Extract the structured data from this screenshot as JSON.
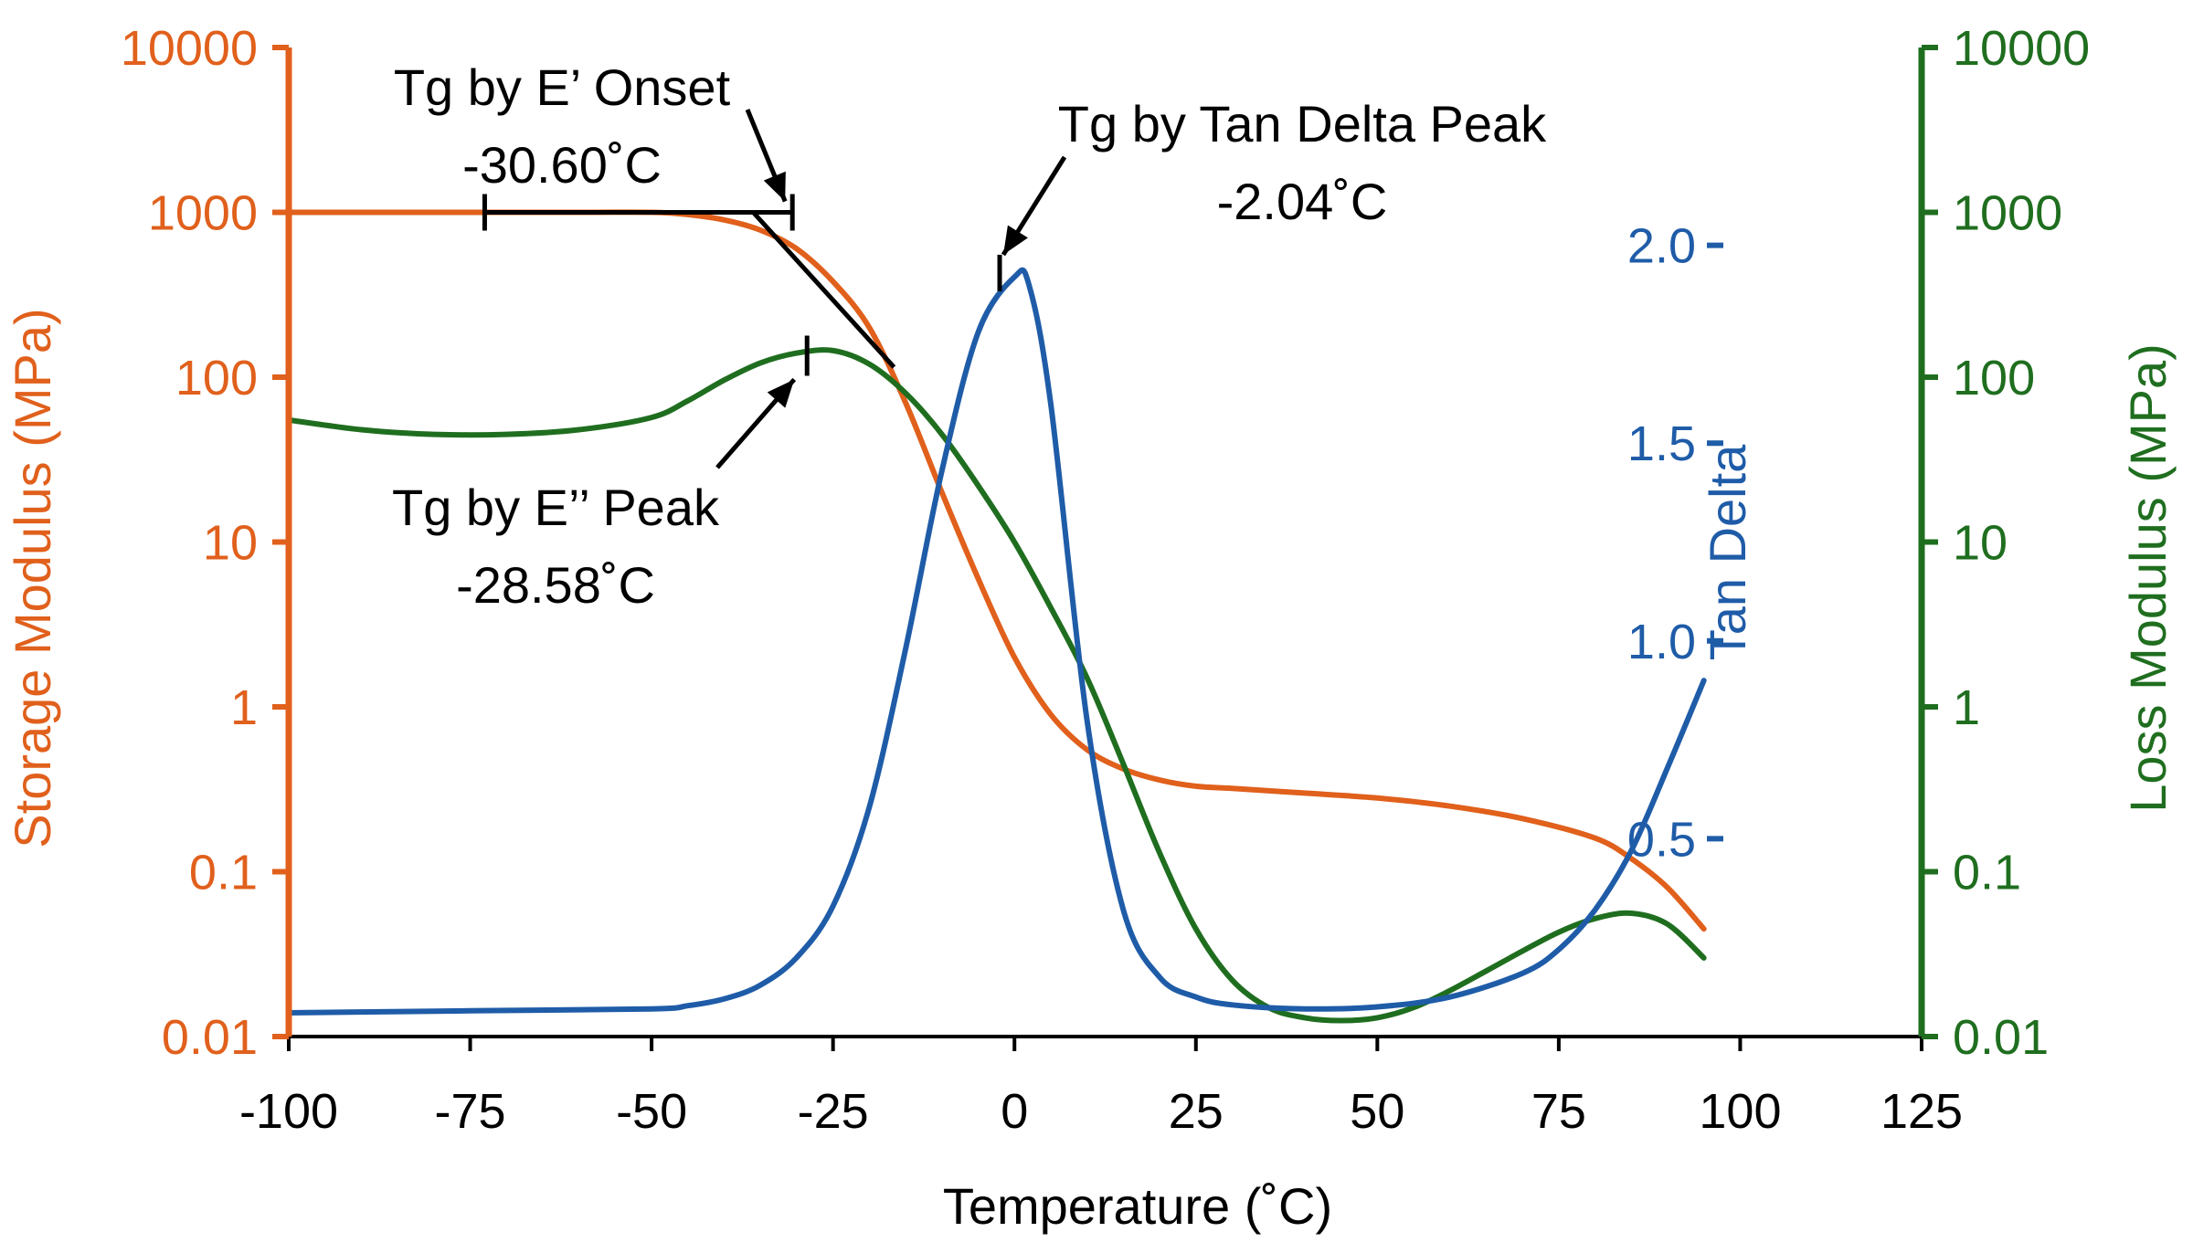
{
  "colors": {
    "storage": "#E0601C",
    "loss": "#1F6E1F",
    "tan": "#1F5CA8",
    "annotation": "#000000"
  },
  "chart_data": {
    "type": "line",
    "xlabel": "Temperature (˚C)",
    "xlim": [
      -100,
      125
    ],
    "x_ticks": [
      "-100",
      "-75",
      "-50",
      "-25",
      "0",
      "25",
      "50",
      "75",
      "100",
      "125"
    ],
    "y_left": {
      "label": "Storage Modulus (MPa)",
      "scale": "log",
      "lim": [
        0.01,
        10000
      ],
      "ticks": [
        "10000",
        "1000",
        "100",
        "10",
        "1",
        "0.1",
        "0.01"
      ]
    },
    "y_right": {
      "label": "Loss Modulus (MPa)",
      "scale": "log",
      "lim": [
        0.01,
        10000
      ],
      "ticks": [
        "10000",
        "1000",
        "100",
        "10",
        "1",
        "0.1",
        "0.01"
      ]
    },
    "y_tan": {
      "label": "Tan Delta",
      "lim": [
        0.0,
        2.5
      ],
      "ticks": [
        "2.0",
        "1.5",
        "1.0",
        "0.5"
      ]
    },
    "series": [
      {
        "name": "Storage Modulus",
        "axis": "left",
        "x": [
          -100,
          -80,
          -60,
          -50,
          -45,
          -40,
          -35,
          -30,
          -25,
          -20,
          -15,
          -10,
          -5,
          0,
          5,
          10,
          15,
          20,
          25,
          30,
          40,
          50,
          60,
          70,
          80,
          85,
          90,
          95
        ],
        "y": [
          1000,
          1000,
          1000,
          1000,
          970,
          900,
          780,
          600,
          380,
          200,
          70,
          20,
          6,
          2,
          0.9,
          0.55,
          0.42,
          0.36,
          0.33,
          0.32,
          0.3,
          0.28,
          0.25,
          0.21,
          0.16,
          0.12,
          0.08,
          0.045
        ]
      },
      {
        "name": "Loss Modulus",
        "axis": "right",
        "x": [
          -100,
          -90,
          -80,
          -70,
          -60,
          -50,
          -45,
          -40,
          -35,
          -30,
          -25,
          -20,
          -15,
          -10,
          -5,
          0,
          5,
          10,
          15,
          20,
          25,
          30,
          35,
          40,
          45,
          50,
          55,
          60,
          65,
          70,
          75,
          80,
          85,
          90,
          95
        ],
        "y": [
          55,
          48,
          45,
          45,
          48,
          57,
          72,
          96,
          122,
          140,
          145,
          120,
          80,
          45,
          22,
          10,
          4,
          1.5,
          0.45,
          0.13,
          0.045,
          0.022,
          0.015,
          0.013,
          0.0125,
          0.013,
          0.015,
          0.019,
          0.025,
          0.033,
          0.043,
          0.052,
          0.056,
          0.048,
          0.03
        ]
      },
      {
        "name": "Tan Delta",
        "axis": "tan",
        "x": [
          -100,
          -75,
          -50,
          -45,
          -40,
          -35,
          -30,
          -25,
          -20,
          -15,
          -10,
          -5,
          0,
          2,
          5,
          10,
          15,
          20,
          25,
          30,
          40,
          50,
          60,
          70,
          75,
          80,
          85,
          90,
          95
        ],
        "y": [
          0.06,
          0.065,
          0.07,
          0.078,
          0.095,
          0.13,
          0.2,
          0.33,
          0.58,
          0.98,
          1.43,
          1.78,
          1.92,
          1.9,
          1.6,
          0.8,
          0.32,
          0.15,
          0.1,
          0.08,
          0.07,
          0.075,
          0.1,
          0.16,
          0.22,
          0.32,
          0.47,
          0.68,
          0.9
        ]
      }
    ],
    "annotations": {
      "onset": {
        "line1": "Tg by E’ Onset",
        "line2": "-30.60˚C",
        "value": -30.6,
        "baseline_from": -73,
        "baseline_modulus": 1000,
        "tangent_from_x": -36,
        "tangent_from_modulus": 1000,
        "tangent_to_x": -16.6,
        "tangent_to_modulus": 115
      },
      "loss_peak": {
        "line1": "Tg by E’’ Peak",
        "line2": "-28.58˚C",
        "value": -28.58,
        "modulus": 135
      },
      "tan_peak": {
        "line1": "Tg by Tan Delta Peak",
        "line2": "-2.04˚C",
        "value": -2.04,
        "tan_delta": 1.93
      }
    }
  }
}
